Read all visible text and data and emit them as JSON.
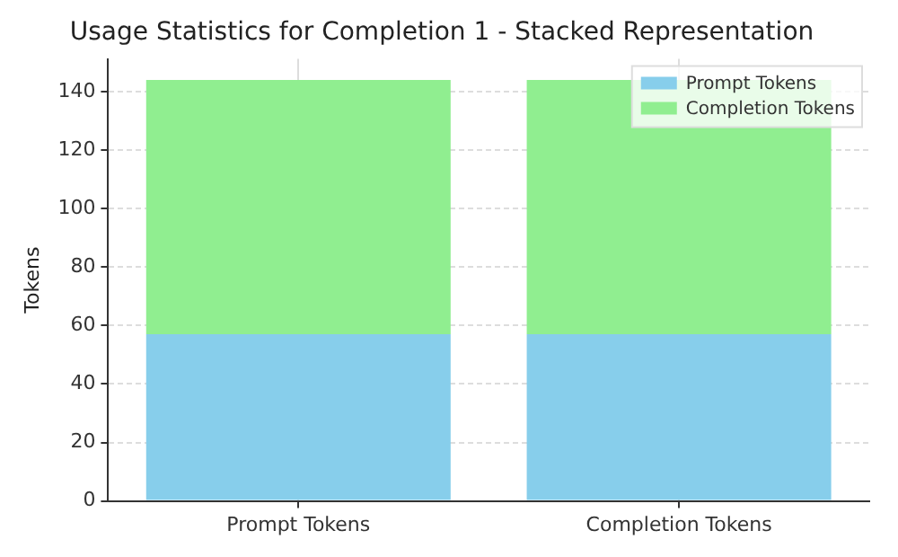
{
  "chart_data": {
    "type": "bar",
    "title": "Usage Statistics for Completion 1 - Stacked Representation",
    "ylabel": "Tokens",
    "categories": [
      "Prompt Tokens",
      "Completion Tokens"
    ],
    "stacked": true,
    "series": [
      {
        "name": "Prompt Tokens",
        "color": "#87ceeb",
        "values": [
          57,
          57
        ]
      },
      {
        "name": "Completion Tokens",
        "color": "#90ee90",
        "values": [
          87,
          87
        ]
      }
    ],
    "ylim": [
      0,
      151.2
    ],
    "yticks": [
      0,
      20,
      40,
      60,
      80,
      100,
      120,
      140
    ],
    "grid": true,
    "legend": "top right"
  }
}
